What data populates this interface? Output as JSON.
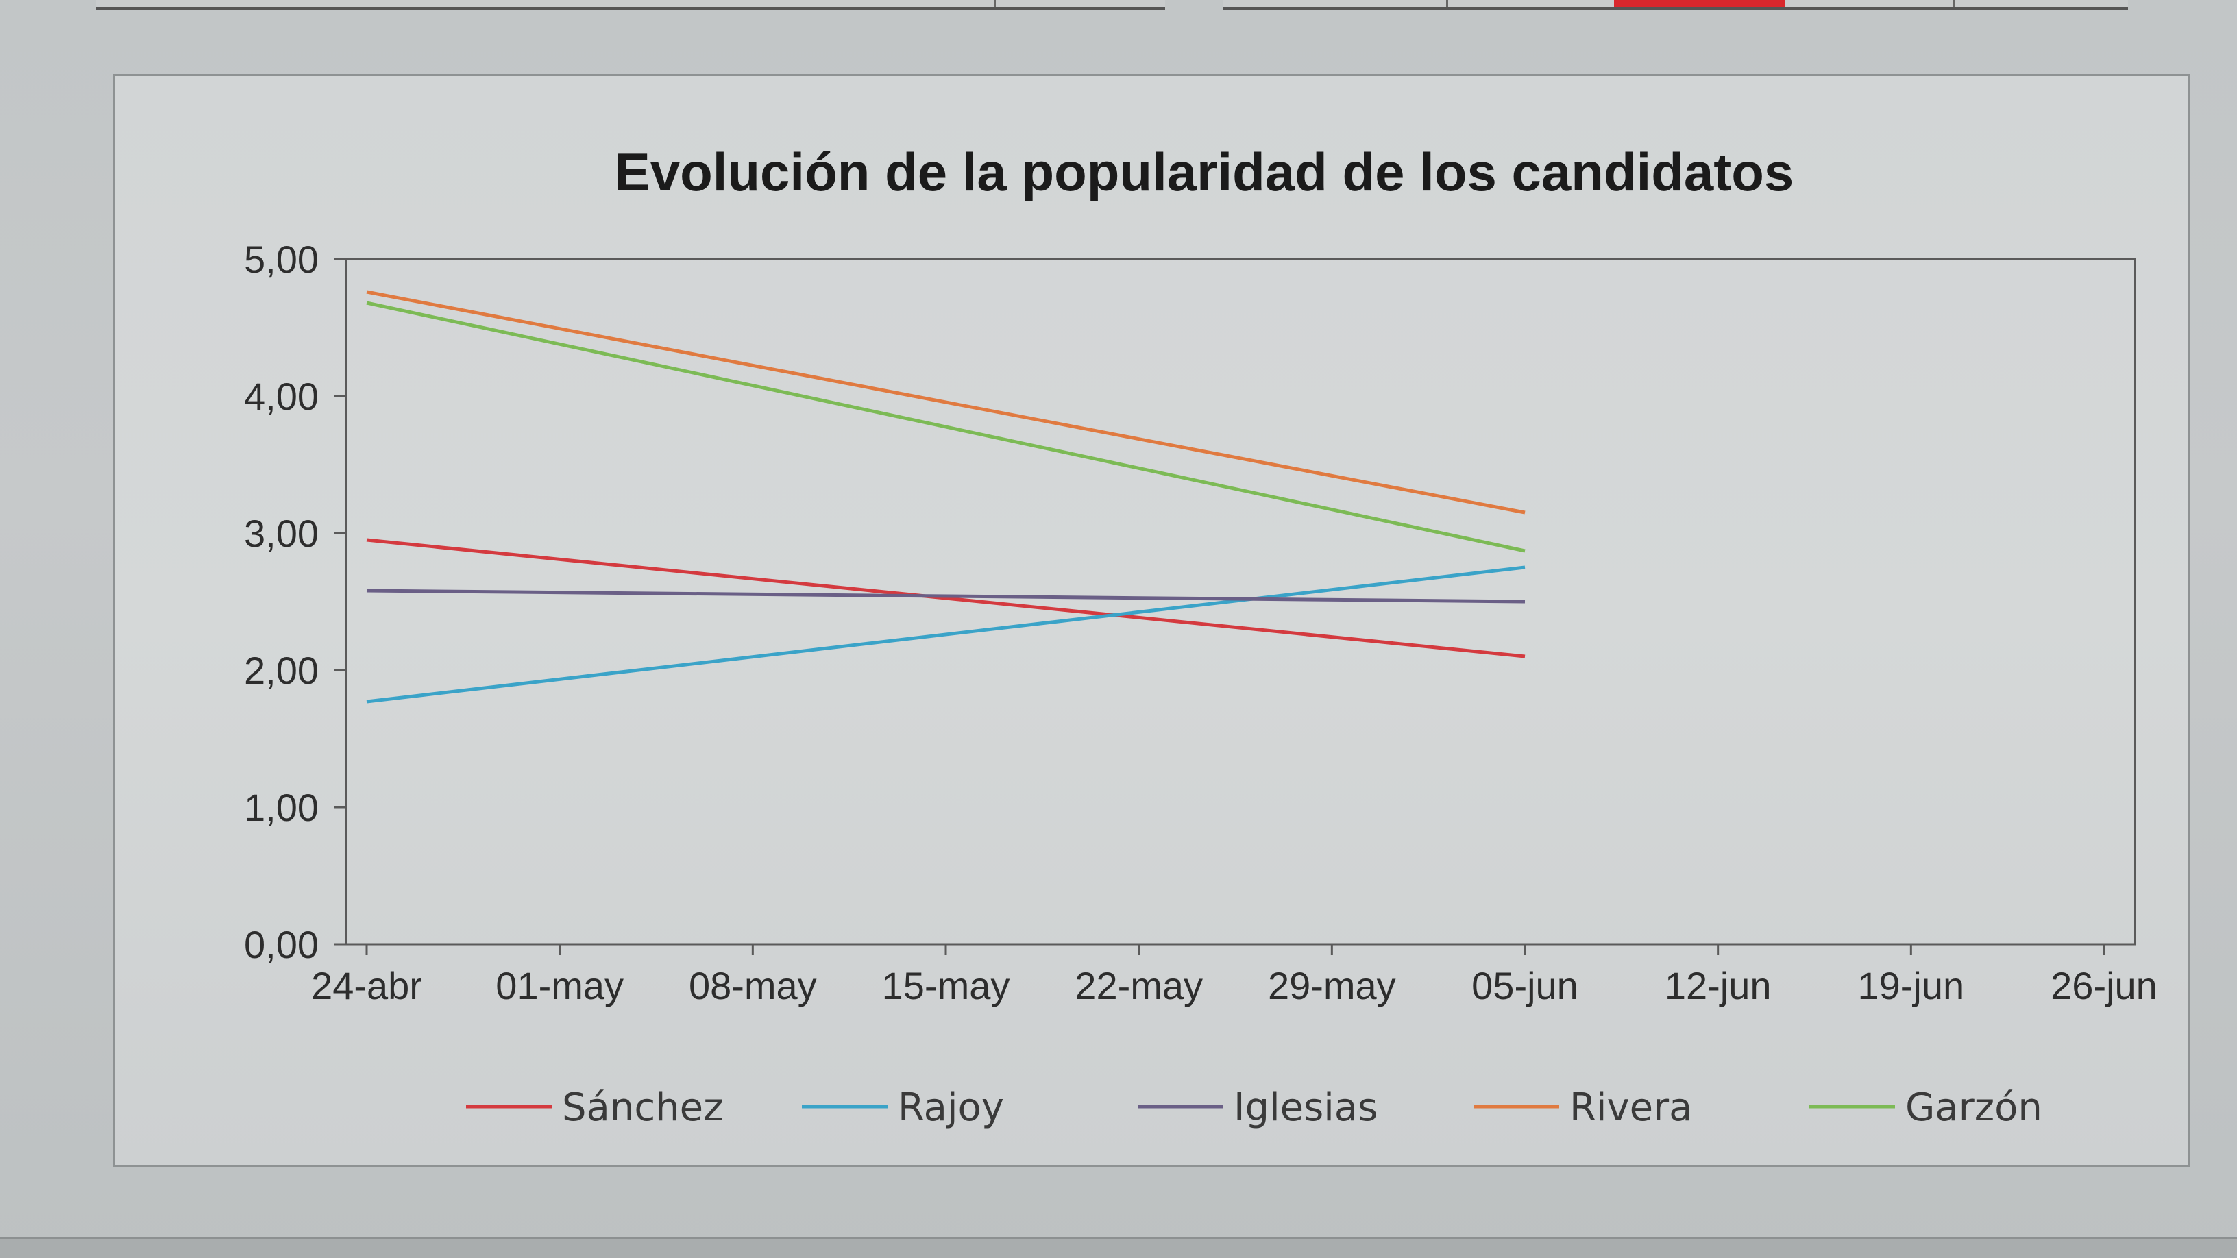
{
  "chart_data": {
    "type": "line",
    "title": "Evolución de la popularidad de los candidatos",
    "xlabel": "",
    "ylabel": "",
    "x_ticks": [
      "24-abr",
      "01-may",
      "08-may",
      "15-may",
      "22-may",
      "29-may",
      "05-jun",
      "12-jun",
      "19-jun",
      "26-jun"
    ],
    "y_ticks": [
      "0,00",
      "1,00",
      "2,00",
      "3,00",
      "4,00",
      "5,00"
    ],
    "ylim": [
      0,
      5
    ],
    "xlim": [
      "24-abr",
      "26-jun"
    ],
    "grid": false,
    "legend_position": "bottom",
    "x": [
      "24-abr",
      "05-jun"
    ],
    "series": [
      {
        "name": "Sánchez",
        "color": "#d43a3f",
        "values": [
          2.95,
          2.1
        ]
      },
      {
        "name": "Rajoy",
        "color": "#3aa3c8",
        "values": [
          1.77,
          2.75
        ]
      },
      {
        "name": "Iglesias",
        "color": "#6a5f86",
        "values": [
          2.58,
          2.5
        ]
      },
      {
        "name": "Rivera",
        "color": "#e07a40",
        "values": [
          4.76,
          3.15
        ]
      },
      {
        "name": "Garzón",
        "color": "#7cba55",
        "values": [
          4.68,
          2.87
        ]
      }
    ]
  }
}
